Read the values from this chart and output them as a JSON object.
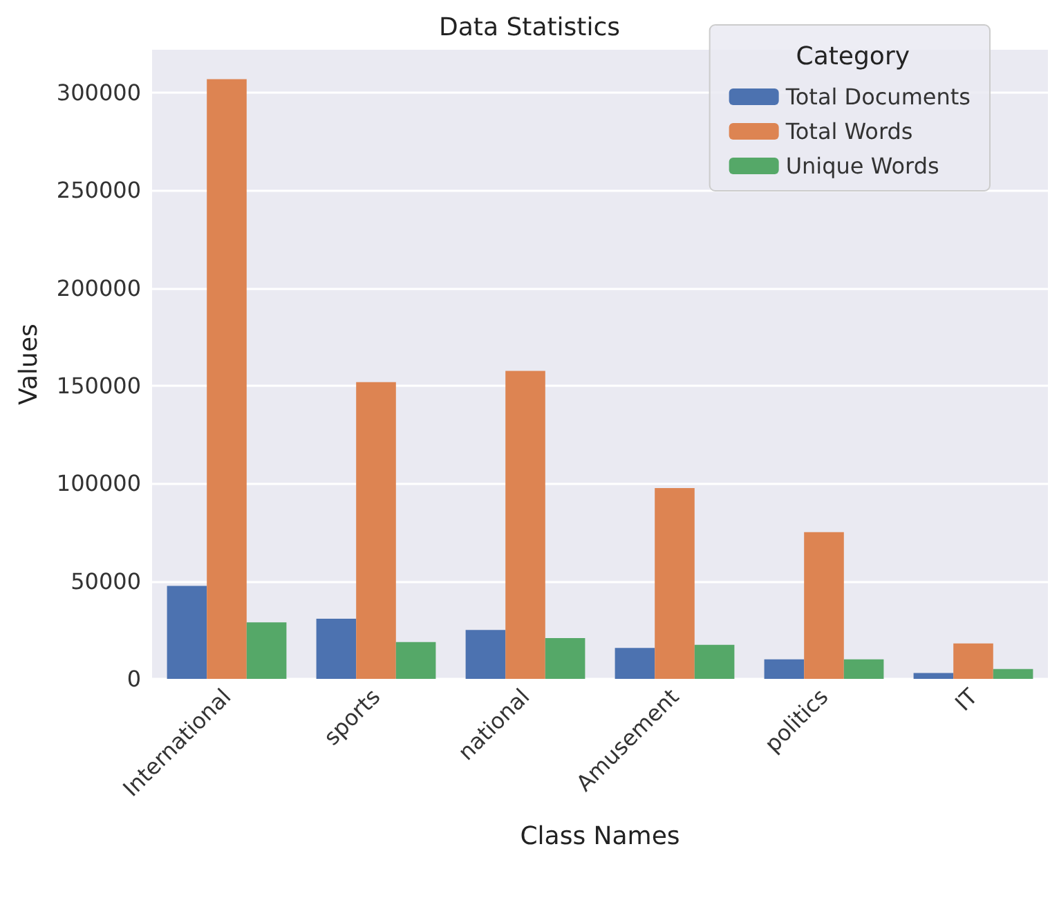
{
  "chart_data": {
    "type": "bar",
    "title": "Data Statistics",
    "xlabel": "Class Names",
    "ylabel": "Values",
    "legend_title": "Category",
    "categories": [
      "International",
      "sports",
      "national",
      "Amusement",
      "politics",
      "IT"
    ],
    "series": [
      {
        "name": "Total Documents",
        "color": "#4c72b0",
        "values": [
          47600,
          30800,
          25000,
          15800,
          10000,
          3000
        ]
      },
      {
        "name": "Total Words",
        "color": "#dd8452",
        "values": [
          307000,
          151900,
          157600,
          97700,
          75100,
          18100
        ]
      },
      {
        "name": "Unique Words",
        "color": "#55a868",
        "values": [
          28900,
          18800,
          20900,
          17400,
          10000,
          5000
        ]
      }
    ],
    "ylim": [
      0,
      322000
    ],
    "yticks": [
      0,
      50000,
      100000,
      150000,
      200000,
      250000,
      300000
    ],
    "grid": "y",
    "legend": "top right"
  }
}
